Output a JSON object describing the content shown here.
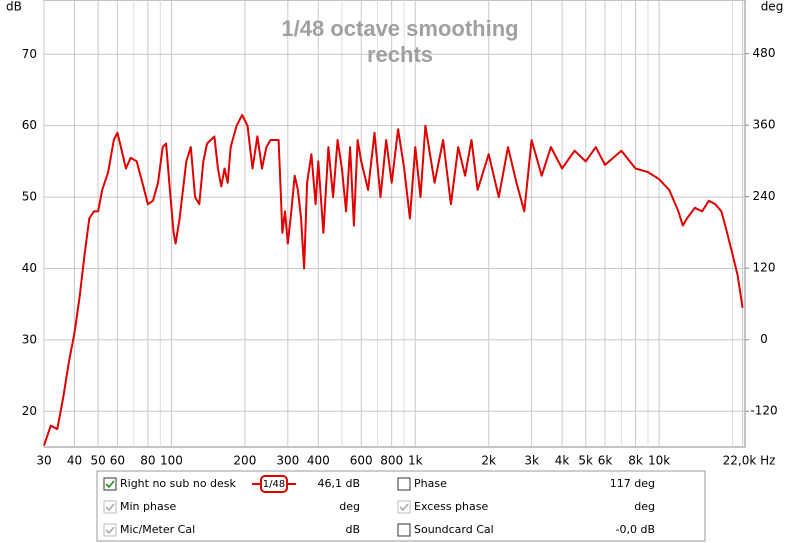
{
  "chart_data": {
    "type": "line",
    "title": "1/48 octave smoothing",
    "subtitle": "rechts",
    "y_label": "dB",
    "y2_label": "deg",
    "log_x": true,
    "grid": true,
    "xlim": [
      30,
      22500
    ],
    "ylim": [
      15,
      77.6
    ],
    "y2lim": [
      -180,
      570
    ],
    "xticks": [
      30,
      40,
      50,
      60,
      80,
      100,
      200,
      300,
      400,
      600,
      800,
      {
        "value": 1000,
        "label": "1k"
      },
      {
        "value": 2000,
        "label": "2k"
      },
      {
        "value": 3000,
        "label": "3k"
      },
      {
        "value": 4000,
        "label": "4k"
      },
      {
        "value": 5000,
        "label": "5k"
      },
      {
        "value": 6000,
        "label": "6k"
      },
      {
        "value": 8000,
        "label": "8k"
      },
      {
        "value": 10000,
        "label": "10k"
      },
      {
        "value": 22000,
        "label": "22,0k Hz"
      }
    ],
    "xminor": [
      70,
      90,
      500,
      700,
      900,
      7000,
      9000,
      20000
    ],
    "yticks": [
      20,
      30,
      40,
      50,
      60,
      70
    ],
    "y2ticks": [
      -120,
      0,
      120,
      240,
      360,
      480
    ],
    "series": [
      {
        "name": "Right no sub no desk",
        "color": "#e00000",
        "x": [
          30,
          32,
          34,
          36,
          38,
          40,
          42,
          44,
          46,
          48,
          50,
          52,
          55,
          58,
          60,
          62,
          65,
          68,
          72,
          76,
          80,
          84,
          88,
          92,
          95,
          98,
          102,
          104,
          108,
          115,
          120,
          125,
          130,
          135,
          140,
          145,
          150,
          155,
          160,
          165,
          170,
          175,
          185,
          195,
          205,
          215,
          225,
          235,
          245,
          255,
          275,
          285,
          292,
          300,
          310,
          320,
          330,
          340,
          350,
          360,
          375,
          390,
          400,
          420,
          440,
          460,
          480,
          500,
          520,
          540,
          560,
          580,
          600,
          640,
          680,
          720,
          760,
          800,
          850,
          900,
          950,
          1000,
          1050,
          1100,
          1200,
          1300,
          1400,
          1500,
          1600,
          1700,
          1800,
          2000,
          2200,
          2400,
          2600,
          2800,
          3000,
          3300,
          3600,
          4000,
          4500,
          5000,
          5500,
          6000,
          7000,
          8000,
          9000,
          10000,
          11000,
          12000,
          12500,
          13000,
          14000,
          15000,
          16000,
          17000,
          18000,
          19000,
          20000,
          21000,
          22000
        ],
        "values": [
          15.2,
          18,
          17.5,
          22,
          27,
          31,
          36,
          42,
          47,
          48,
          48,
          51,
          53.5,
          58,
          59,
          57,
          54,
          55.5,
          55,
          52,
          49,
          49.5,
          52,
          57,
          57.5,
          52,
          45,
          43.5,
          47,
          55,
          57,
          50,
          49,
          55,
          57.5,
          58,
          58.5,
          54,
          51.5,
          54,
          52,
          57,
          60,
          61.5,
          60,
          54,
          58.5,
          54,
          57,
          58,
          58,
          45,
          48,
          43.5,
          48,
          53,
          51,
          47,
          40,
          52,
          56,
          49,
          55,
          45,
          57,
          50,
          58,
          54,
          48,
          57,
          46,
          58,
          55,
          51,
          59,
          50,
          58,
          52,
          59.5,
          54,
          47,
          57,
          50,
          60,
          52,
          58,
          49,
          57,
          53,
          58,
          51,
          56,
          50,
          57,
          52,
          48,
          58,
          53,
          57,
          54,
          56.5,
          55,
          57,
          54.5,
          56.5,
          54,
          53.5,
          52.5,
          51,
          48,
          46,
          47,
          48.5,
          48,
          49.5,
          49,
          48,
          45,
          42,
          39,
          34.5
        ]
      }
    ],
    "legend_panel": [
      [
        {
          "name": "Right no sub no desk",
          "smoothing": "1/48",
          "value": "46,1 dB",
          "checked": true,
          "enabled": true,
          "color": "#c00000"
        },
        {
          "name": "Phase",
          "value": "117 deg",
          "checked": false,
          "enabled": true,
          "color": "#c00000"
        }
      ],
      [
        {
          "name": "Min phase",
          "value": "deg",
          "checked": true,
          "enabled": false,
          "color": "#999999"
        },
        {
          "name": "Excess phase",
          "value": "deg",
          "checked": true,
          "enabled": false,
          "color": "#999999"
        }
      ],
      [
        {
          "name": "Mic/Meter Cal",
          "value": "dB",
          "checked": true,
          "enabled": false,
          "color": "#999999"
        },
        {
          "name": "Soundcard Cal",
          "value": "-0,0 dB",
          "checked": false,
          "enabled": true,
          "color": "#000000"
        }
      ]
    ]
  }
}
